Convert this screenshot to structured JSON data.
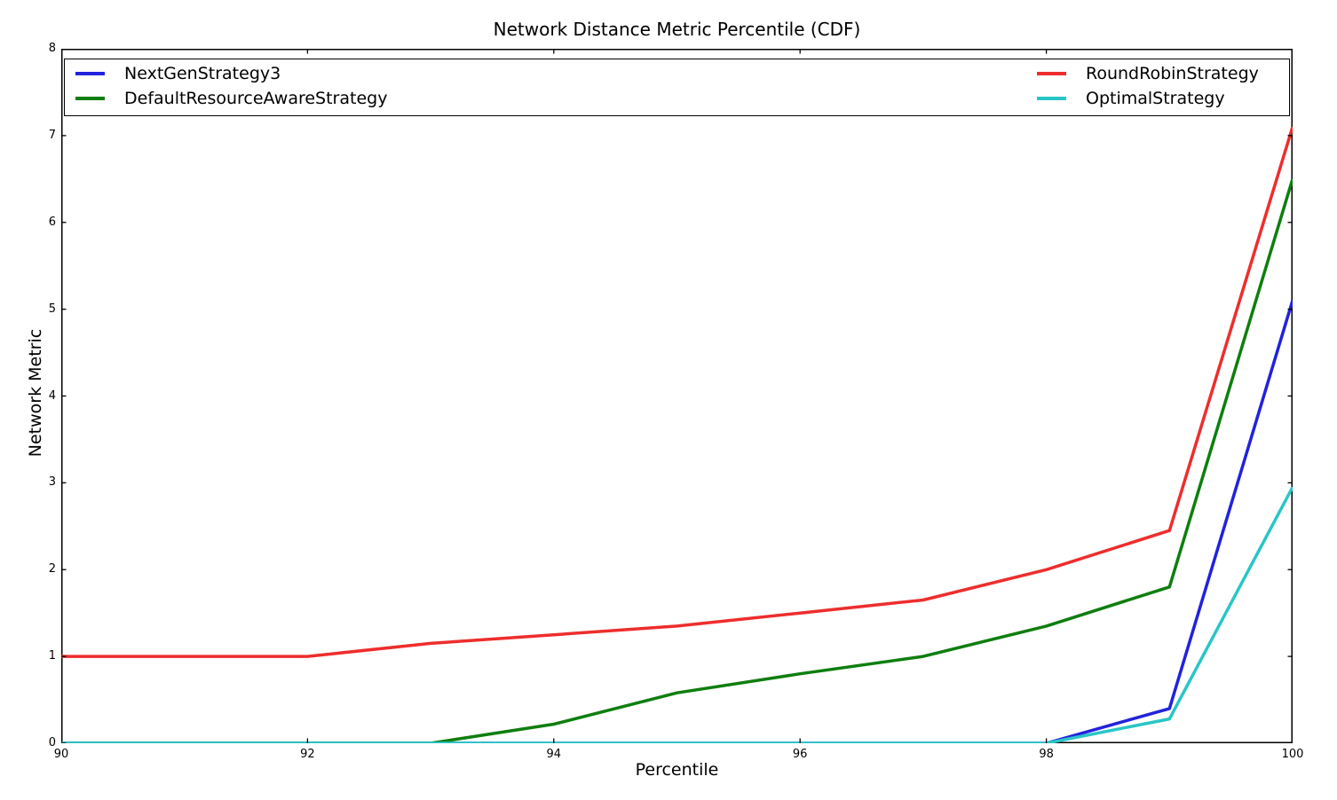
{
  "chart_data": {
    "type": "line",
    "title": "Network Distance Metric Percentile (CDF)",
    "xlabel": "Percentile",
    "ylabel": "Network Metric",
    "xlim": [
      90,
      100
    ],
    "ylim": [
      0,
      8
    ],
    "xticks": [
      90,
      92,
      94,
      96,
      98,
      100
    ],
    "yticks": [
      0,
      1,
      2,
      3,
      4,
      5,
      6,
      7,
      8
    ],
    "grid": false,
    "background_color": "#ffffff",
    "axis_color": "#000000",
    "x": [
      90,
      91,
      92,
      93,
      94,
      95,
      96,
      97,
      98,
      99,
      100
    ],
    "series": [
      {
        "name": "NextGenStrategy3",
        "color": "#2222dd",
        "values": [
          0,
          0,
          0,
          0,
          0,
          0,
          0,
          0,
          0,
          0.4,
          5.1
        ]
      },
      {
        "name": "DefaultResourceAwareStrategy",
        "color": "#0e7e0e",
        "values": [
          0,
          0,
          0,
          0,
          0.22,
          0.58,
          0.8,
          1.0,
          1.35,
          1.8,
          6.5
        ]
      },
      {
        "name": "RoundRobinStrategy",
        "color": "#ee2d2d",
        "values": [
          1.0,
          1.0,
          1.0,
          1.15,
          1.25,
          1.35,
          1.5,
          1.65,
          2.0,
          2.45,
          7.1
        ]
      },
      {
        "name": "OptimalStrategy",
        "color": "#28c6c6",
        "values": [
          0,
          0,
          0,
          0,
          0,
          0,
          0,
          0,
          0,
          0.28,
          2.95
        ]
      }
    ],
    "legend": {
      "position": "top-full-width-inside-axes",
      "columns": [
        [
          0,
          1
        ],
        [
          2,
          3
        ]
      ]
    }
  }
}
